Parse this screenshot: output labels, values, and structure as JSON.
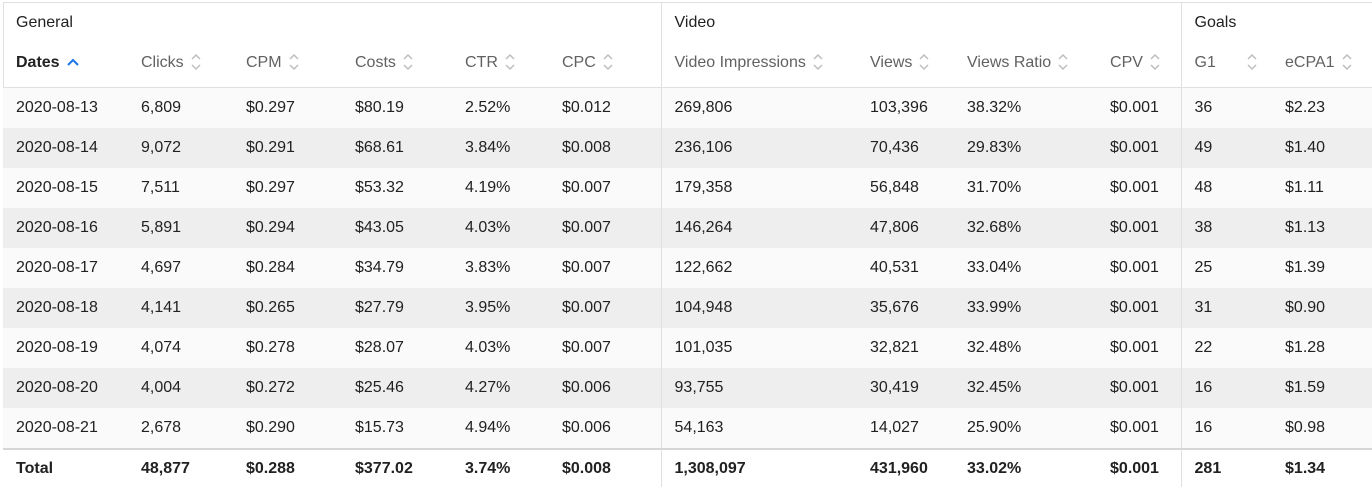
{
  "groups": {
    "general": "General",
    "video": "Video",
    "goals": "Goals"
  },
  "columns": {
    "dates": "Dates",
    "clicks": "Clicks",
    "cpm": "CPM",
    "costs": "Costs",
    "ctr": "CTR",
    "cpc": "CPC",
    "video_impressions": "Video Impressions",
    "views": "Views",
    "views_ratio": "Views Ratio",
    "cpv": "CPV",
    "g1": "G1",
    "ecpa1": "eCPA1"
  },
  "sort": {
    "column": "dates",
    "direction": "ascending",
    "active_color": "#1a73e8"
  },
  "rows": [
    {
      "date": "2020-08-13",
      "clicks": "6,809",
      "cpm": "$0.297",
      "costs": "$80.19",
      "ctr": "2.52%",
      "cpc": "$0.012",
      "video_impressions": "269,806",
      "views": "103,396",
      "views_ratio": "38.32%",
      "cpv": "$0.001",
      "g1": "36",
      "ecpa1": "$2.23"
    },
    {
      "date": "2020-08-14",
      "clicks": "9,072",
      "cpm": "$0.291",
      "costs": "$68.61",
      "ctr": "3.84%",
      "cpc": "$0.008",
      "video_impressions": "236,106",
      "views": "70,436",
      "views_ratio": "29.83%",
      "cpv": "$0.001",
      "g1": "49",
      "ecpa1": "$1.40"
    },
    {
      "date": "2020-08-15",
      "clicks": "7,511",
      "cpm": "$0.297",
      "costs": "$53.32",
      "ctr": "4.19%",
      "cpc": "$0.007",
      "video_impressions": "179,358",
      "views": "56,848",
      "views_ratio": "31.70%",
      "cpv": "$0.001",
      "g1": "48",
      "ecpa1": "$1.11"
    },
    {
      "date": "2020-08-16",
      "clicks": "5,891",
      "cpm": "$0.294",
      "costs": "$43.05",
      "ctr": "4.03%",
      "cpc": "$0.007",
      "video_impressions": "146,264",
      "views": "47,806",
      "views_ratio": "32.68%",
      "cpv": "$0.001",
      "g1": "38",
      "ecpa1": "$1.13"
    },
    {
      "date": "2020-08-17",
      "clicks": "4,697",
      "cpm": "$0.284",
      "costs": "$34.79",
      "ctr": "3.83%",
      "cpc": "$0.007",
      "video_impressions": "122,662",
      "views": "40,531",
      "views_ratio": "33.04%",
      "cpv": "$0.001",
      "g1": "25",
      "ecpa1": "$1.39"
    },
    {
      "date": "2020-08-18",
      "clicks": "4,141",
      "cpm": "$0.265",
      "costs": "$27.79",
      "ctr": "3.95%",
      "cpc": "$0.007",
      "video_impressions": "104,948",
      "views": "35,676",
      "views_ratio": "33.99%",
      "cpv": "$0.001",
      "g1": "31",
      "ecpa1": "$0.90"
    },
    {
      "date": "2020-08-19",
      "clicks": "4,074",
      "cpm": "$0.278",
      "costs": "$28.07",
      "ctr": "4.03%",
      "cpc": "$0.007",
      "video_impressions": "101,035",
      "views": "32,821",
      "views_ratio": "32.48%",
      "cpv": "$0.001",
      "g1": "22",
      "ecpa1": "$1.28"
    },
    {
      "date": "2020-08-20",
      "clicks": "4,004",
      "cpm": "$0.272",
      "costs": "$25.46",
      "ctr": "4.27%",
      "cpc": "$0.006",
      "video_impressions": "93,755",
      "views": "30,419",
      "views_ratio": "32.45%",
      "cpv": "$0.001",
      "g1": "16",
      "ecpa1": "$1.59"
    },
    {
      "date": "2020-08-21",
      "clicks": "2,678",
      "cpm": "$0.290",
      "costs": "$15.73",
      "ctr": "4.94%",
      "cpc": "$0.006",
      "video_impressions": "54,163",
      "views": "14,027",
      "views_ratio": "25.90%",
      "cpv": "$0.001",
      "g1": "16",
      "ecpa1": "$0.98"
    }
  ],
  "total": {
    "label": "Total",
    "clicks": "48,877",
    "cpm": "$0.288",
    "costs": "$377.02",
    "ctr": "3.74%",
    "cpc": "$0.008",
    "video_impressions": "1,308,097",
    "views": "431,960",
    "views_ratio": "33.02%",
    "cpv": "$0.001",
    "g1": "281",
    "ecpa1": "$1.34"
  }
}
